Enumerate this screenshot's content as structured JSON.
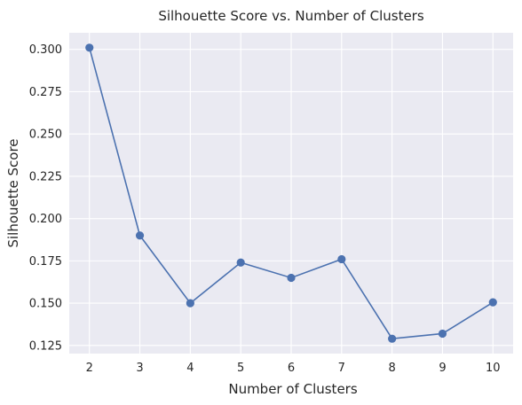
{
  "chart_data": {
    "type": "line",
    "title": "Silhouette Score vs. Number of Clusters",
    "xlabel": "Number of Clusters",
    "ylabel": "Silhouette Score",
    "x": [
      2,
      3,
      4,
      5,
      6,
      7,
      8,
      9,
      10
    ],
    "series": [
      {
        "values": [
          0.301,
          0.19,
          0.15,
          0.174,
          0.165,
          0.176,
          0.129,
          0.132,
          0.1505
        ],
        "color": "#4c72b0",
        "marker": "circle"
      }
    ],
    "x_ticks": [
      "2",
      "3",
      "4",
      "5",
      "6",
      "7",
      "8",
      "9",
      "10"
    ],
    "y_ticks": [
      "0.125",
      "0.150",
      "0.175",
      "0.200",
      "0.225",
      "0.250",
      "0.275",
      "0.300"
    ],
    "xlim": [
      1.6,
      10.4
    ],
    "ylim": [
      0.1202,
      0.3098
    ],
    "grid": true,
    "legend": false,
    "style": {
      "plot_background": "#eaeaf2",
      "grid_color": "#ffffff"
    }
  }
}
